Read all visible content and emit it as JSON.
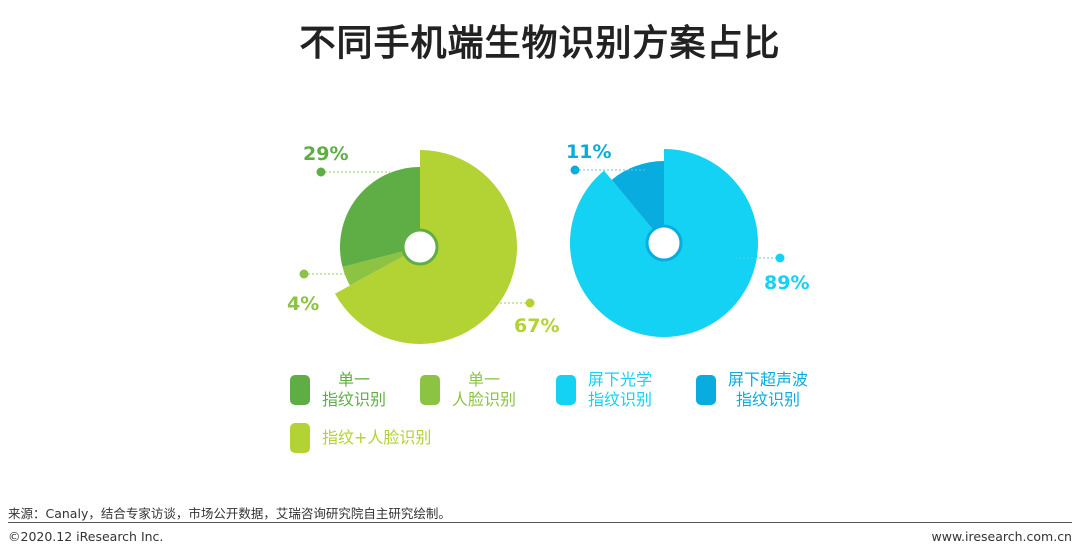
{
  "title": "不同手机端生物识别方案占比",
  "colors": {
    "fingerprint": "#5FAE45",
    "face": "#8CC343",
    "combo": "#B3D233",
    "optical": "#13D2F3",
    "ultrasonic": "#09ACDF",
    "text_dark": "#222222"
  },
  "chart_data": [
    {
      "type": "pie",
      "labels": [
        "指纹+人脸识别",
        "单一人脸识别",
        "单一指纹识别"
      ],
      "values": [
        67,
        4,
        29
      ],
      "value_labels": [
        "67%",
        "4%",
        "29%"
      ]
    },
    {
      "type": "pie",
      "labels": [
        "屏下光学指纹识别",
        "屏下超声波指纹识别"
      ],
      "values": [
        89,
        11
      ],
      "value_labels": [
        "89%",
        "11%"
      ]
    }
  ],
  "legend": [
    {
      "label": "单一\n指纹识别",
      "color_key": "fingerprint"
    },
    {
      "label": "单一\n人脸识别",
      "color_key": "face"
    },
    {
      "label": "屏下光学\n指纹识别",
      "color_key": "optical"
    },
    {
      "label": "屏下超声波\n指纹识别",
      "color_key": "ultrasonic"
    },
    {
      "label": "指纹+人脸识别",
      "color_key": "combo"
    }
  ],
  "source": "来源：Canaly，结合专家访谈，市场公开数据，艾瑞咨询研究院自主研究绘制。",
  "footer": {
    "copyright": "©2020.12 iResearch Inc.",
    "website": "www.iresearch.com.cn"
  }
}
